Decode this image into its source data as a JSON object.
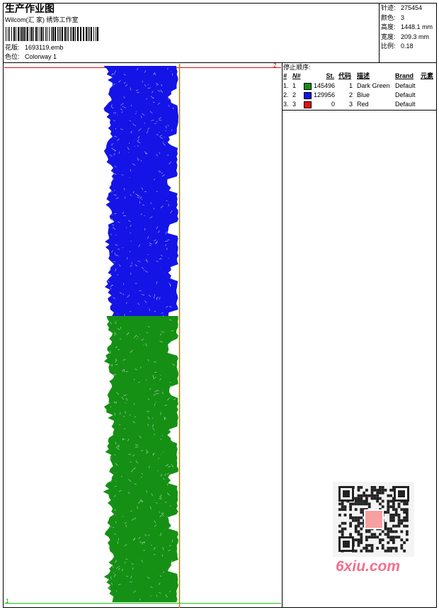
{
  "header": {
    "title": "生产作业图",
    "studio": "Wilcom(汇 家) 绣饰工作室",
    "design_label": "花版:",
    "design": "1693119.emb",
    "colorway_label": "色位:",
    "colorway": "Colorway 1"
  },
  "info": [
    {
      "label": "针迹:",
      "value": "275454"
    },
    {
      "label": "颜色:",
      "value": "3"
    },
    {
      "label": "高度:",
      "value": "1448.1 mm"
    },
    {
      "label": "宽度:",
      "value": "209.3 mm"
    },
    {
      "label": "比例:",
      "value": "0.18"
    }
  ],
  "stop_sequence": {
    "title": "停止顺序:",
    "columns": [
      "#",
      "N#",
      "St.",
      "代码",
      "描述",
      "Brand",
      "元素"
    ],
    "rows": [
      {
        "index": "1.",
        "needle": "1",
        "color": "#159015",
        "stitches": "145496",
        "code": "1",
        "description": "Dark Green",
        "brand": "Default"
      },
      {
        "index": "2.",
        "needle": "2",
        "color": "#1414e6",
        "stitches": "129956",
        "code": "2",
        "description": "Blue",
        "brand": "Default"
      },
      {
        "index": "3.",
        "needle": "3",
        "color": "#e01010",
        "stitches": "0",
        "code": "3",
        "description": "Red",
        "brand": "Default"
      }
    ]
  },
  "markers": {
    "start": "1",
    "end": "2"
  },
  "watermark": "6xiu.com"
}
